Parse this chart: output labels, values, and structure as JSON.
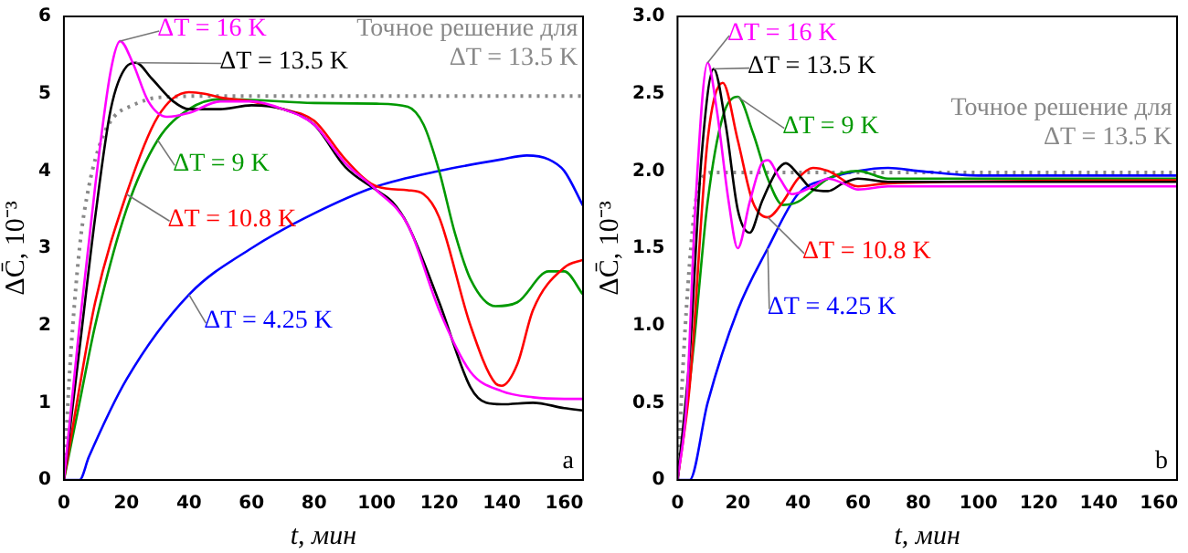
{
  "chart_data": [
    {
      "type": "line",
      "xlabel": "t, мин",
      "ylabel": "ΔC̄, 10⁻³",
      "xlim": [
        0,
        166
      ],
      "xticks": [
        0,
        20,
        40,
        60,
        80,
        100,
        120,
        140,
        160
      ],
      "ylim": [
        0,
        6
      ],
      "yticks": [
        0,
        1,
        2,
        3,
        4,
        5,
        6
      ],
      "grid": false,
      "legend": false,
      "marker": "none",
      "annotations": [
        "a"
      ],
      "series": [
        {
          "name": "ΔT = 16 K",
          "color": "#ff00ff",
          "x": [
            0,
            5,
            10,
            15,
            18,
            22,
            27,
            33,
            40,
            50,
            60,
            70,
            80,
            90,
            100,
            110,
            120,
            130,
            140,
            150,
            160,
            166
          ],
          "values": [
            0,
            2.0,
            3.8,
            5.3,
            5.68,
            5.4,
            4.9,
            4.7,
            4.75,
            4.9,
            4.9,
            4.8,
            4.6,
            4.1,
            3.75,
            3.3,
            2.2,
            1.4,
            1.15,
            1.07,
            1.05,
            1.05
          ]
        },
        {
          "name": "ΔT = 13.5 K",
          "color": "#000000",
          "x": [
            0,
            5,
            10,
            15,
            20,
            23,
            28,
            35,
            40,
            50,
            60,
            70,
            80,
            90,
            100,
            105,
            110,
            120,
            130,
            135,
            140,
            150,
            160,
            166
          ],
          "values": [
            0,
            1.7,
            3.4,
            4.8,
            5.35,
            5.4,
            5.2,
            4.9,
            4.8,
            4.8,
            4.85,
            4.8,
            4.6,
            4.05,
            3.75,
            3.6,
            3.3,
            2.3,
            1.2,
            1.0,
            0.98,
            1.0,
            0.93,
            0.9
          ]
        },
        {
          "name": "ΔT = 10.8 K",
          "color": "#ff0000",
          "x": [
            0,
            5,
            10,
            20,
            30,
            40,
            45,
            50,
            60,
            70,
            80,
            90,
            100,
            110,
            115,
            120,
            130,
            138,
            140,
            145,
            150,
            160,
            166
          ],
          "values": [
            0,
            1.2,
            2.3,
            3.7,
            4.7,
            5.02,
            5.0,
            4.95,
            4.9,
            4.8,
            4.65,
            4.15,
            3.8,
            3.75,
            3.7,
            3.4,
            2.0,
            1.25,
            1.22,
            1.5,
            2.2,
            2.75,
            2.85
          ]
        },
        {
          "name": "ΔT = 9 K",
          "color": "#009900",
          "x": [
            0,
            5,
            10,
            20,
            30,
            40,
            50,
            60,
            80,
            100,
            110,
            115,
            120,
            125,
            130,
            138,
            145,
            155,
            160,
            166
          ],
          "values": [
            0,
            1.0,
            2.0,
            3.5,
            4.4,
            4.8,
            4.93,
            4.92,
            4.88,
            4.87,
            4.83,
            4.6,
            4.0,
            3.2,
            2.6,
            2.25,
            2.3,
            2.7,
            2.7,
            2.4
          ]
        },
        {
          "name": "ΔT = 4.25 K",
          "color": "#0000ff",
          "x": [
            0,
            5,
            8,
            20,
            40,
            60,
            80,
            100,
            120,
            140,
            148,
            155,
            160,
            166
          ],
          "values": [
            0,
            0,
            0.3,
            1.3,
            2.4,
            3.0,
            3.45,
            3.8,
            4.0,
            4.15,
            4.2,
            4.15,
            4.0,
            3.55
          ]
        },
        {
          "name": "Точное решение для ΔT = 13.5 K",
          "color": "#888888",
          "line_style": "dotted",
          "x": [
            0,
            2,
            5,
            8,
            12,
            16,
            22,
            30,
            50,
            166
          ],
          "values": [
            0,
            1.5,
            3.0,
            3.8,
            4.4,
            4.7,
            4.85,
            4.95,
            4.97,
            4.97
          ]
        }
      ]
    },
    {
      "type": "line",
      "xlabel": "t, мин",
      "ylabel": "ΔC̄, 10⁻³",
      "xlim": [
        0,
        166
      ],
      "xticks": [
        0,
        20,
        40,
        60,
        80,
        100,
        120,
        140,
        160
      ],
      "ylim": [
        0,
        3
      ],
      "yticks": [
        0,
        {
          "value": 0.5,
          "label": "0.5"
        },
        {
          "value": 1,
          "label": "1.0"
        },
        {
          "value": 1.5,
          "label": "1.5"
        },
        {
          "value": 2,
          "label": "2.0"
        },
        {
          "value": 2.5,
          "label": "2.5"
        },
        {
          "value": 3,
          "label": "3.0"
        }
      ],
      "grid": false,
      "legend": false,
      "marker": "none",
      "annotations": [
        "b"
      ],
      "series": [
        {
          "name": "ΔT = 16 K",
          "color": "#ff00ff",
          "x": [
            0,
            3,
            6,
            10,
            13,
            17,
            20,
            24,
            28,
            30,
            34,
            38,
            45,
            50,
            55,
            60,
            70,
            166
          ],
          "values": [
            0,
            0.5,
            1.8,
            2.7,
            2.4,
            1.8,
            1.5,
            1.8,
            2.05,
            2.07,
            1.95,
            1.85,
            1.9,
            1.95,
            1.92,
            1.88,
            1.9,
            1.9
          ]
        },
        {
          "name": "ΔT = 13.5 K",
          "color": "#000000",
          "x": [
            0,
            4,
            8,
            12,
            16,
            20,
            24,
            28,
            33,
            36,
            40,
            45,
            50,
            55,
            60,
            70,
            166
          ],
          "values": [
            0,
            0.8,
            2.1,
            2.66,
            2.3,
            1.75,
            1.6,
            1.8,
            2.0,
            2.05,
            1.98,
            1.88,
            1.87,
            1.92,
            1.95,
            1.93,
            1.93
          ]
        },
        {
          "name": "ΔT = 10.8 K",
          "color": "#ff0000",
          "x": [
            0,
            4,
            10,
            15,
            20,
            25,
            30,
            35,
            40,
            45,
            50,
            60,
            70,
            166
          ],
          "values": [
            0,
            0.6,
            2.2,
            2.57,
            2.2,
            1.8,
            1.7,
            1.8,
            1.95,
            2.02,
            2.0,
            1.9,
            1.92,
            1.94
          ]
        },
        {
          "name": "ΔT = 9 K",
          "color": "#009900",
          "x": [
            0,
            5,
            10,
            15,
            20,
            25,
            30,
            35,
            40,
            50,
            60,
            70,
            166
          ],
          "values": [
            0,
            0.8,
            1.8,
            2.35,
            2.48,
            2.25,
            1.95,
            1.78,
            1.8,
            1.95,
            2.0,
            1.95,
            1.95
          ]
        },
        {
          "name": "ΔT = 4.25 K",
          "color": "#0000ff",
          "x": [
            0,
            4,
            10,
            20,
            30,
            40,
            50,
            60,
            70,
            80,
            100,
            166
          ],
          "values": [
            0,
            0,
            0.5,
            1.1,
            1.5,
            1.85,
            1.95,
            2.0,
            2.02,
            2.0,
            1.97,
            1.97
          ]
        },
        {
          "name": "Точное решение для ΔT = 13.5 K",
          "color": "#888888",
          "line_style": "dotted",
          "x": [
            0,
            2,
            4,
            6,
            8,
            12,
            166
          ],
          "values": [
            0,
            0.8,
            1.4,
            1.8,
            1.95,
            1.99,
            1.99
          ]
        }
      ]
    }
  ]
}
